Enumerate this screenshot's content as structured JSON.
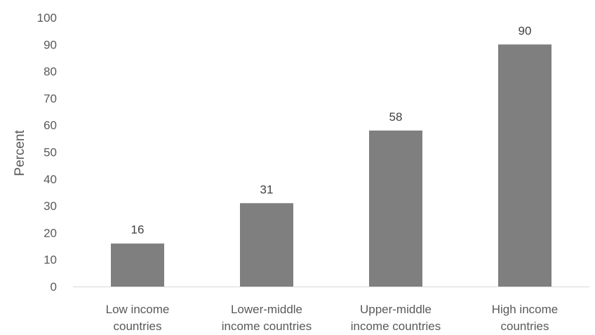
{
  "chart_data": {
    "type": "bar",
    "categories": [
      [
        "Low income",
        "countries"
      ],
      [
        "Lower-middle",
        "income countries"
      ],
      [
        "Upper-middle",
        "income countries"
      ],
      [
        "High income",
        "countries"
      ]
    ],
    "values": [
      16,
      31,
      58,
      90
    ],
    "title": "",
    "xlabel": "",
    "ylabel": "Percent",
    "ylim": [
      0,
      100
    ],
    "yticks": [
      0,
      10,
      20,
      30,
      40,
      50,
      60,
      70,
      80,
      90,
      100
    ],
    "grid": false,
    "bar_color": "#7f7f7f",
    "axis_color": "#d9d9d9"
  }
}
